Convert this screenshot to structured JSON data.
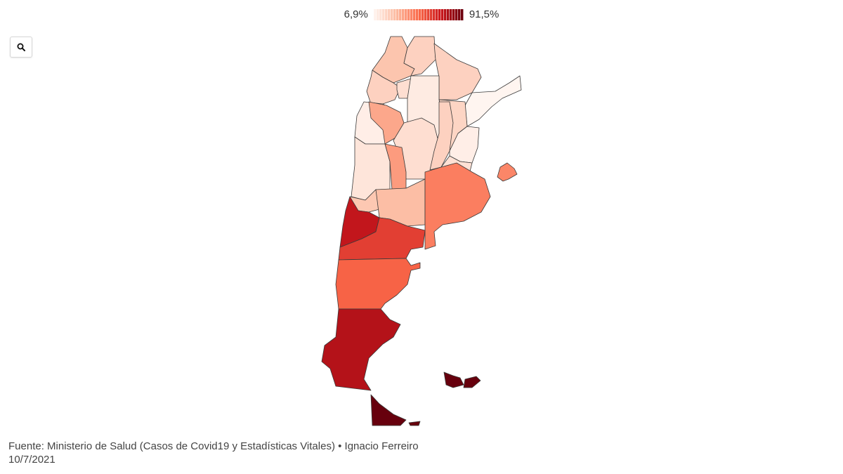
{
  "legend": {
    "min_label": "6,9%",
    "max_label": "91,5%",
    "color_min": "#fff5f0",
    "color_max": "#67000d"
  },
  "toolbar": {
    "zoom_icon": "search-icon"
  },
  "map": {
    "type": "choropleth",
    "provinces": [
      {
        "id": "jujuy",
        "value": 22
      },
      {
        "id": "salta",
        "value": 18
      },
      {
        "id": "formosa",
        "value": 18
      },
      {
        "id": "misiones",
        "value": 7
      },
      {
        "id": "catamarca",
        "value": 9
      },
      {
        "id": "tucuman",
        "value": 14
      },
      {
        "id": "santiago-del-estero",
        "value": 10
      },
      {
        "id": "chaco",
        "value": 17
      },
      {
        "id": "corrientes",
        "value": 9
      },
      {
        "id": "la-rioja",
        "value": 30
      },
      {
        "id": "san-juan",
        "value": 12
      },
      {
        "id": "cordoba",
        "value": 14
      },
      {
        "id": "santa-fe",
        "value": 18
      },
      {
        "id": "entre-rios",
        "value": 13
      },
      {
        "id": "mendoza",
        "value": 21
      },
      {
        "id": "san-luis",
        "value": 33
      },
      {
        "id": "caba",
        "value": 38
      },
      {
        "id": "la-pampa",
        "value": 24
      },
      {
        "id": "buenos-aires",
        "value": 40
      },
      {
        "id": "neuquen",
        "value": 72
      },
      {
        "id": "rio-negro",
        "value": 58
      },
      {
        "id": "chubut",
        "value": 47
      },
      {
        "id": "santa-cruz",
        "value": 75
      },
      {
        "id": "tierra-del-fuego",
        "value": 91.5
      },
      {
        "id": "malvinas",
        "value": 91.5
      }
    ]
  },
  "footer": {
    "source": "Fuente: Ministerio de Salud (Casos de Covid19 y Estadísticas Vitales) • Ignacio Ferreiro",
    "date": "10/7/2021"
  }
}
